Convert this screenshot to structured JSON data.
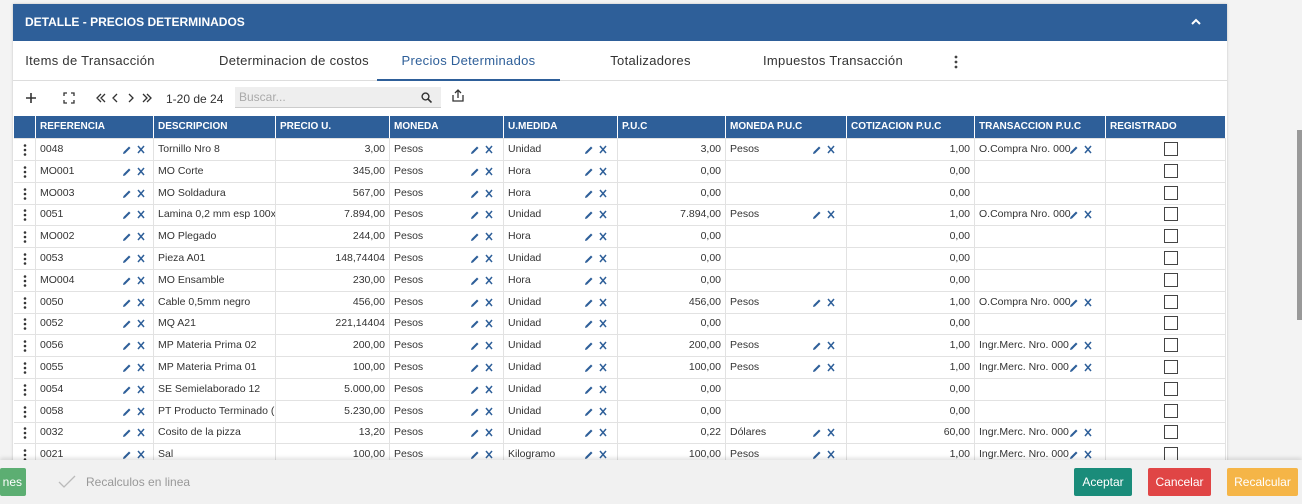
{
  "header": {
    "title": "DETALLE - PRECIOS DETERMINADOS"
  },
  "tabs": [
    "Items de Transacción",
    "Determinacion de costos",
    "Precios Determinados",
    "Totalizadores",
    "Impuestos Transacción"
  ],
  "active_tab": 2,
  "toolbar": {
    "pagination": "1-20 de 24",
    "search_placeholder": "Buscar..."
  },
  "table": {
    "columns": [
      "REFERENCIA",
      "DESCRIPCION",
      "PRECIO U.",
      "MONEDA",
      "U.MEDIDA",
      "P.U.C",
      "MONEDA P.U.C",
      "COTIZACION P.U.C",
      "TRANSACCION P.U.C",
      "REGISTRADO"
    ],
    "rows": [
      [
        "0048",
        "Tornillo Nro 8",
        "3,00",
        "Pesos",
        "Unidad",
        "3,00",
        "Pesos",
        "1,00",
        "O.Compra Nro. 000"
      ],
      [
        "MO001",
        "MO Corte",
        "345,00",
        "Pesos",
        "Hora",
        "0,00",
        null,
        "0,00",
        null
      ],
      [
        "MO003",
        "MO Soldadura",
        "567,00",
        "Pesos",
        "Hora",
        "0,00",
        null,
        "0,00",
        null
      ],
      [
        "0051",
        "Lamina 0,2 mm esp 100x",
        "7.894,00",
        "Pesos",
        "Unidad",
        "7.894,00",
        "Pesos",
        "1,00",
        "O.Compra Nro. 000"
      ],
      [
        "MO002",
        "MO Plegado",
        "244,00",
        "Pesos",
        "Hora",
        "0,00",
        null,
        "0,00",
        null
      ],
      [
        "0053",
        "Pieza A01",
        "148,74404",
        "Pesos",
        "Unidad",
        "0,00",
        null,
        "0,00",
        null
      ],
      [
        "MO004",
        "MO Ensamble",
        "230,00",
        "Pesos",
        "Hora",
        "0,00",
        null,
        "0,00",
        null
      ],
      [
        "0050",
        "Cable 0,5mm negro",
        "456,00",
        "Pesos",
        "Unidad",
        "456,00",
        "Pesos",
        "1,00",
        "O.Compra Nro. 000"
      ],
      [
        "0052",
        "MQ A21",
        "221,14404",
        "Pesos",
        "Unidad",
        "0,00",
        null,
        "0,00",
        null
      ],
      [
        "0056",
        "MP Materia Prima 02",
        "200,00",
        "Pesos",
        "Unidad",
        "200,00",
        "Pesos",
        "1,00",
        "Ingr.Merc. Nro. 000"
      ],
      [
        "0055",
        "MP Materia Prima 01",
        "100,00",
        "Pesos",
        "Unidad",
        "100,00",
        "Pesos",
        "1,00",
        "Ingr.Merc. Nro. 000"
      ],
      [
        "0054",
        "SE Semielaborado 12",
        "5.000,00",
        "Pesos",
        "Unidad",
        "0,00",
        null,
        "0,00",
        null
      ],
      [
        "0058",
        "PT Producto Terminado (",
        "5.230,00",
        "Pesos",
        "Unidad",
        "0,00",
        null,
        "0,00",
        null
      ],
      [
        "0032",
        "Cosito de la pizza",
        "13,20",
        "Pesos",
        "Unidad",
        "0,22",
        "Dólares",
        "60,00",
        "Ingr.Merc. Nro. 000"
      ],
      [
        "0021",
        "Sal",
        "100,00",
        "Pesos",
        "Kilogramo",
        "100,00",
        "Pesos",
        "1,00",
        "Ingr.Merc. Nro. 000"
      ]
    ]
  },
  "footer": {
    "left_button": "nes",
    "recalc_toggle": "Recalculos en linea",
    "buttons": [
      "Aceptar",
      "Cancelar",
      "Recalcular"
    ]
  }
}
